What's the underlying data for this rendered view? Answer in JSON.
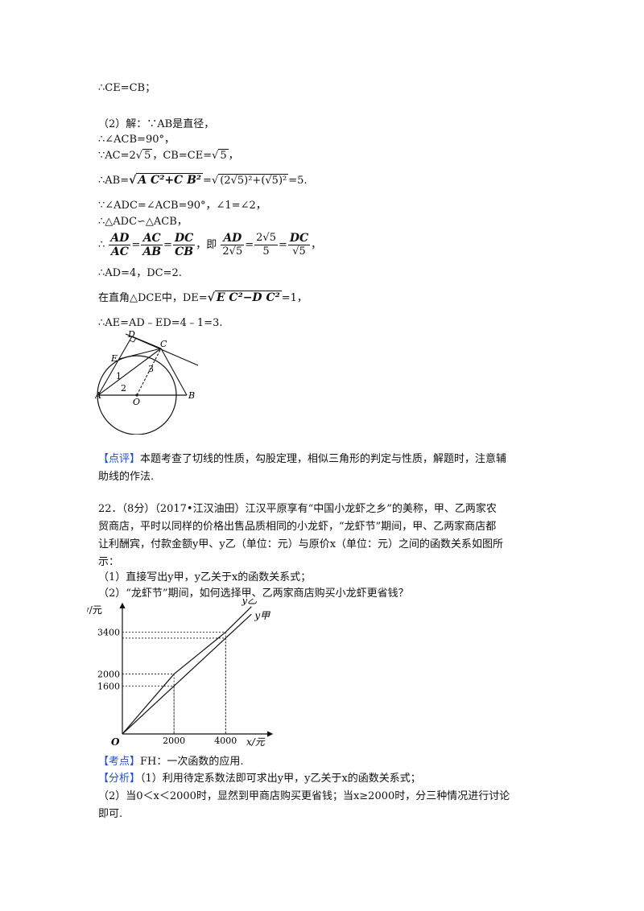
{
  "solution_lines": {
    "l1": "∴CE=CB；",
    "l2": "（2）解：∵AB是直径，",
    "l3": "∴∠ACB=90°，",
    "l4a": "∵AC=2",
    "l4b": "5",
    "l4c": "，CB=CE=",
    "l4d": "5",
    "l4e": "，",
    "l5a": "∴AB=",
    "l5b": "A C²+C B²",
    "l5c": "=",
    "l5d": "(2√5)²+(√5)²",
    "l5e": "=5.",
    "l6": "∵∠ADC=∠ACB=90°，∠1=∠2，",
    "l7": "∴△ADC∽△ACB，",
    "l8_pre": "∴",
    "l8_f1n": "AD",
    "l8_f1d": "AC",
    "l8_f2n": "AC",
    "l8_f2d": "AB",
    "l8_f3n": "DC",
    "l8_f3d": "CB",
    "l8_mid": "，即",
    "l8_f4n": "AD",
    "l8_f4d": "2√5",
    "l8_f5n": "2√5",
    "l8_f5d": "5",
    "l8_f6n": "DC",
    "l8_f6d": "√5",
    "l8_end": "，",
    "l9": "∴AD=4，DC=2.",
    "l10a": "在直角△DCE中，DE=",
    "l10b": "E C²−D C²",
    "l10c": "=1，",
    "l11": "∴AE=AD﹣ED=4﹣1=3."
  },
  "circle_figure": {
    "labels": {
      "D": "D",
      "E": "E",
      "C": "C",
      "A": "A",
      "B": "B",
      "O": "O",
      "one": "1",
      "two": "2",
      "three": "3"
    }
  },
  "comment": {
    "tag": "【点评】",
    "text1": "本题考查了切线的性质，勾股定理，相似三角形的判定与性质，解题时，注意辅",
    "text2": "助线的作法."
  },
  "problem22": {
    "line1": "22．（8分）（2017•江汉油田）江汉平原享有“中国小龙虾之乡”的美称，甲、乙两家农",
    "line2": "贸商店，平时以同样的价格出售品质相同的小龙虾，“龙虾节”期间，甲、乙两家商店都",
    "line3": "让利酬宾，付款金额y甲、y乙（单位：元）与原价x（单位：元）之间的函数关系如图所",
    "line4": "示：",
    "q1": "（1）直接写出y甲，y乙关于x的函数关系式；",
    "q2": "（2）“龙虾节”期间，如何选择甲、乙两家商店购买小龙虾更省钱？"
  },
  "chart_data": {
    "type": "line",
    "xlabel": "x/元",
    "ylabel": "y/元",
    "origin_label": "O",
    "x_ticks": [
      2000,
      4000
    ],
    "y_ticks": [
      1600,
      2000,
      3400
    ],
    "series": [
      {
        "name": "y乙",
        "points": [
          [
            0,
            0
          ],
          [
            2000,
            2000
          ],
          [
            4000,
            3400
          ]
        ]
      },
      {
        "name": "y甲",
        "points": [
          [
            0,
            0
          ],
          [
            2000,
            1600
          ],
          [
            4000,
            3200
          ]
        ]
      }
    ],
    "xlim": [
      0,
      5800
    ],
    "ylim": [
      0,
      4300
    ]
  },
  "analysis": {
    "kaodian_tag": "【考点】",
    "kaodian_text": "FH：一次函数的应用.",
    "fenxi_tag": "【分析】",
    "fenxi_text": "（1）利用待定系数法即可求出y甲，y乙关于x的函数关系式；",
    "line2": "（2）当0＜x＜2000时，显然到甲商店购买更省钱；当x≥2000时，分三种情况进行讨论",
    "line3": "即可."
  }
}
